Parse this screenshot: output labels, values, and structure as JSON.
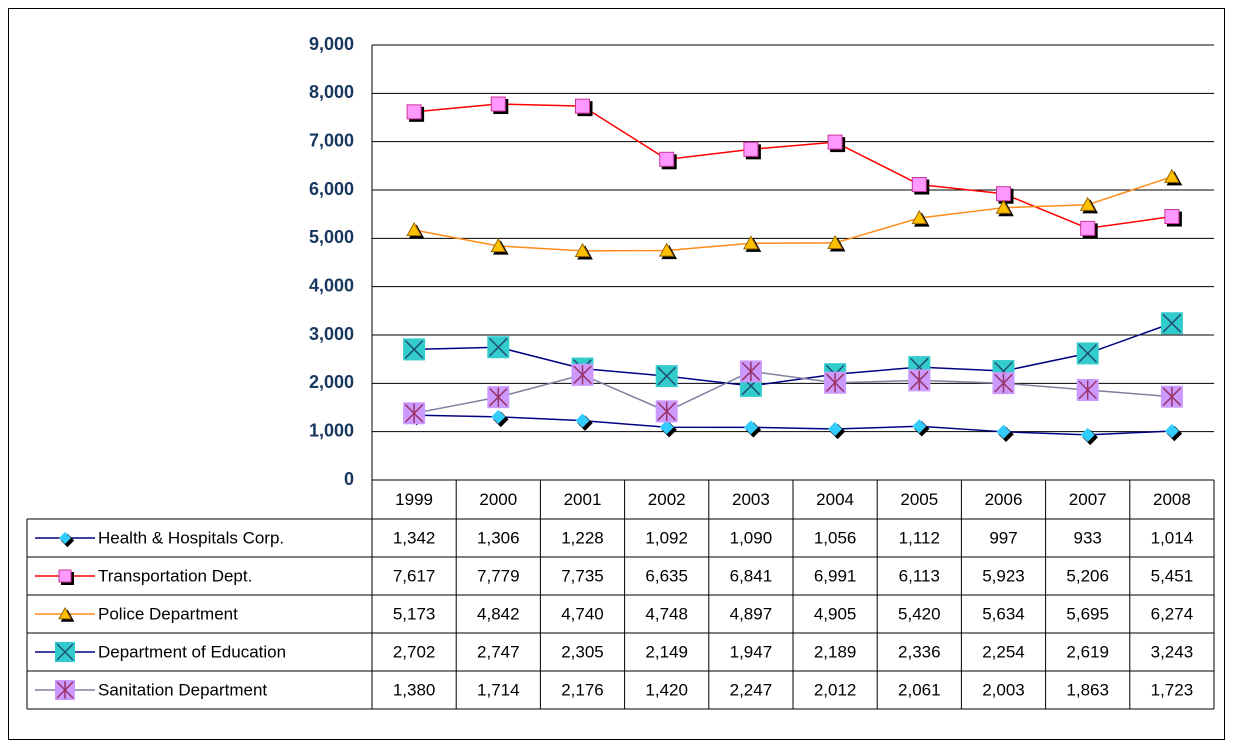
{
  "chart_data": {
    "type": "line",
    "categories": [
      "1999",
      "2000",
      "2001",
      "2002",
      "2003",
      "2004",
      "2005",
      "2006",
      "2007",
      "2008"
    ],
    "ylim": [
      0,
      9000
    ],
    "yticks": [
      0,
      {
        "value": 1000,
        "label": "1,000"
      },
      {
        "value": 2000,
        "label": "2,000"
      },
      {
        "value": 3000,
        "label": "3,000"
      },
      {
        "value": 4000,
        "label": "4,000"
      },
      {
        "value": 5000,
        "label": "5,000"
      },
      {
        "value": 6000,
        "label": "6,000"
      },
      {
        "value": 7000,
        "label": "7,000"
      },
      {
        "value": 8000,
        "label": "8,000"
      },
      {
        "value": 9000,
        "label": "9,000"
      }
    ],
    "grid": true,
    "series": [
      {
        "name": "Health & Hospitals Corp.",
        "color": "#000080",
        "marker": "diamond",
        "marker_color": "#33ccff",
        "values": [
          1342,
          1306,
          1228,
          1092,
          1090,
          1056,
          1112,
          997,
          933,
          1014
        ],
        "value_labels": [
          "1,342",
          "1,306",
          "1,228",
          "1,092",
          "1,090",
          "1,056",
          "1,112",
          "997",
          "933",
          "1,014"
        ]
      },
      {
        "name": "Transportation Dept.",
        "color": "#ff0000",
        "marker": "square",
        "marker_color": "#ff99ff",
        "values": [
          7617,
          7779,
          7735,
          6635,
          6841,
          6991,
          6113,
          5923,
          5206,
          5451
        ],
        "value_labels": [
          "7,617",
          "7,779",
          "7,735",
          "6,635",
          "6,841",
          "6,991",
          "6,113",
          "5,923",
          "5,206",
          "5,451"
        ]
      },
      {
        "name": "Police Department",
        "color": "#ff8c1a",
        "marker": "triangle",
        "marker_color": "#ffc000",
        "values": [
          5173,
          4842,
          4740,
          4748,
          4897,
          4905,
          5420,
          5634,
          5695,
          6274
        ],
        "value_labels": [
          "5,173",
          "4,842",
          "4,740",
          "4,748",
          "4,897",
          "4,905",
          "5,420",
          "5,634",
          "5,695",
          "6,274"
        ]
      },
      {
        "name": "Department of Education",
        "color": "#000080",
        "marker": "xsquare",
        "marker_color": "#33cccc",
        "values": [
          2702,
          2747,
          2305,
          2149,
          1947,
          2189,
          2336,
          2254,
          2619,
          3243
        ],
        "value_labels": [
          "2,702",
          "2,747",
          "2,305",
          "2,149",
          "1,947",
          "2,189",
          "2,336",
          "2,254",
          "2,619",
          "3,243"
        ]
      },
      {
        "name": "Sanitation Department",
        "color": "#7f7fa0",
        "marker": "star",
        "marker_color": "#cc99ff",
        "values": [
          1380,
          1714,
          2176,
          1420,
          2247,
          2012,
          2061,
          2003,
          1863,
          1723
        ],
        "value_labels": [
          "1,380",
          "1,714",
          "2,176",
          "1,420",
          "2,247",
          "2,012",
          "2,061",
          "2,003",
          "1,863",
          "1,723"
        ]
      }
    ]
  }
}
